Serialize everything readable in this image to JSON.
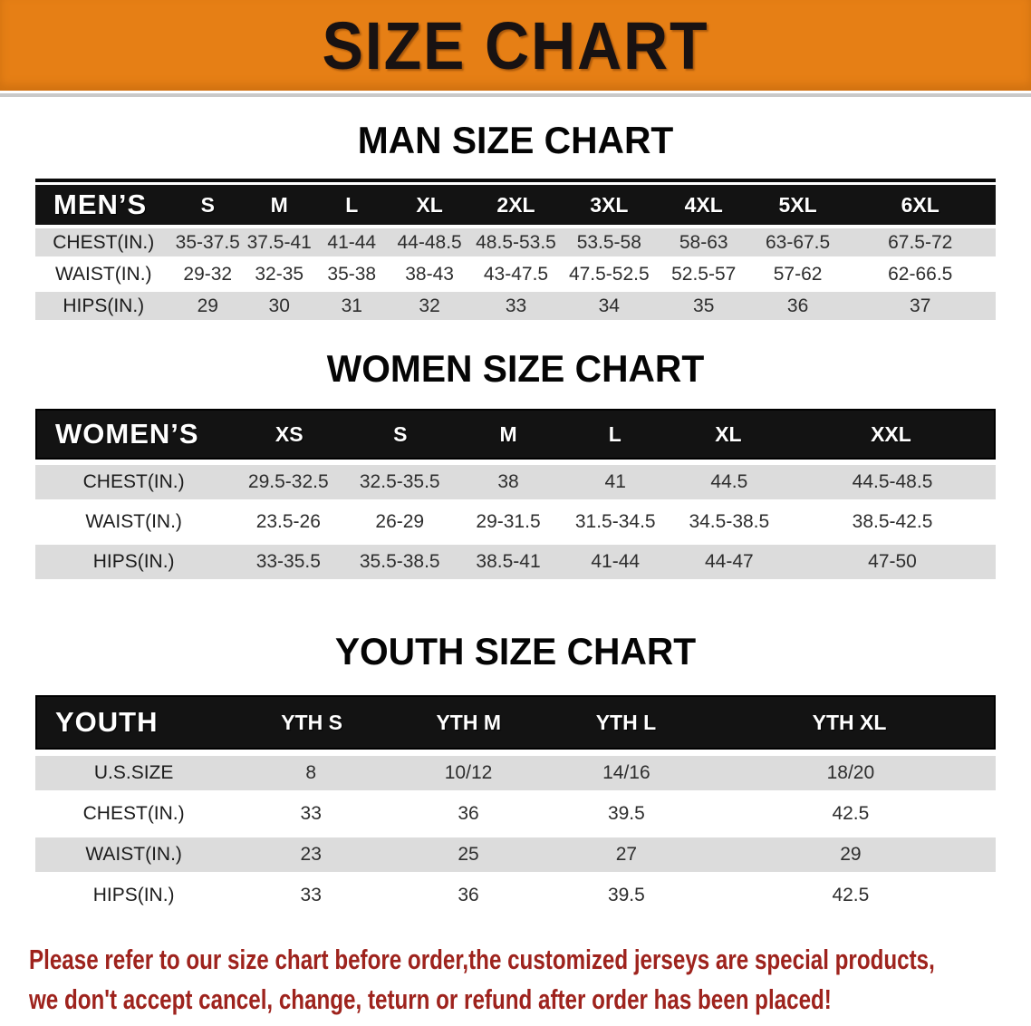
{
  "banner": {
    "title": "SIZE CHART",
    "bg_color": "#e67f15",
    "text_color": "#181212"
  },
  "sections": [
    {
      "heading": "MAN SIZE CHART",
      "table": {
        "title": "MEN’S",
        "columns": [
          "S",
          "M",
          "L",
          "XL",
          "2XL",
          "3XL",
          "4XL",
          "5XL",
          "6XL"
        ],
        "rows": [
          {
            "label": "CHEST(IN.)",
            "values": [
              "35-37.5",
              "37.5-41",
              "41-44",
              "44-48.5",
              "48.5-53.5",
              "53.5-58",
              "58-63",
              "63-67.5",
              "67.5-72"
            ]
          },
          {
            "label": "WAIST(IN.)",
            "values": [
              "29-32",
              "32-35",
              "35-38",
              "38-43",
              "43-47.5",
              "47.5-52.5",
              "52.5-57",
              "57-62",
              "62-66.5"
            ]
          },
          {
            "label": "HIPS(IN.)",
            "values": [
              "29",
              "30",
              "31",
              "32",
              "33",
              "34",
              "35",
              "36",
              "37"
            ]
          }
        ]
      }
    },
    {
      "heading": "WOMEN SIZE CHART",
      "table": {
        "title": "WOMEN’S",
        "columns": [
          "XS",
          "S",
          "M",
          "L",
          "XL",
          "XXL"
        ],
        "rows": [
          {
            "label": "CHEST(IN.)",
            "values": [
              "29.5-32.5",
              "32.5-35.5",
              "38",
              "41",
              "44.5",
              "44.5-48.5"
            ]
          },
          {
            "label": "WAIST(IN.)",
            "values": [
              "23.5-26",
              "26-29",
              "29-31.5",
              "31.5-34.5",
              "34.5-38.5",
              "38.5-42.5"
            ]
          },
          {
            "label": "HIPS(IN.)",
            "values": [
              "33-35.5",
              "35.5-38.5",
              "38.5-41",
              "41-44",
              "44-47",
              "47-50"
            ]
          }
        ]
      }
    },
    {
      "heading": "YOUTH SIZE CHART",
      "table": {
        "title": "YOUTH",
        "columns": [
          "YTH S",
          "YTH M",
          "YTH L",
          "YTH XL"
        ],
        "rows": [
          {
            "label": "U.S.SIZE",
            "values": [
              "8",
              "10/12",
              "14/16",
              "18/20"
            ]
          },
          {
            "label": "CHEST(IN.)",
            "values": [
              "33",
              "36",
              "39.5",
              "42.5"
            ]
          },
          {
            "label": "WAIST(IN.)",
            "values": [
              "23",
              "25",
              "27",
              "29"
            ]
          },
          {
            "label": "HIPS(IN.)",
            "values": [
              "33",
              "36",
              "39.5",
              "42.5"
            ]
          }
        ]
      }
    }
  ],
  "disclaimer": {
    "color": "#9e231d",
    "lines": [
      "Please refer to our size chart before order,the customized jerseys are special products,",
      "we don't accept cancel, change, teturn or refund after order has been placed!"
    ]
  }
}
